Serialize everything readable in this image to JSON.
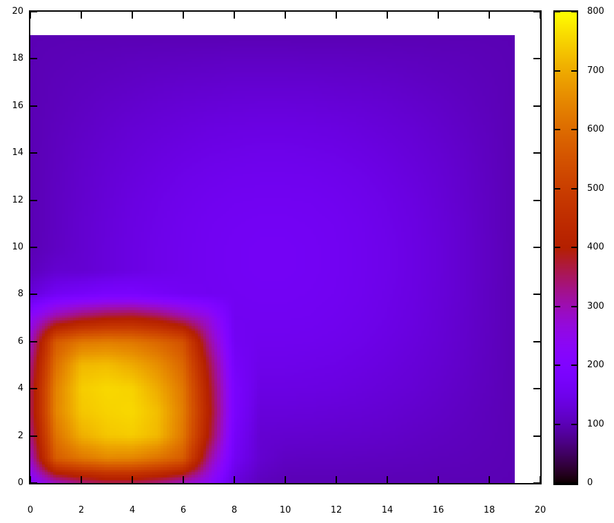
{
  "figure": {
    "title": "",
    "background_color": "#ffffff",
    "border_color": "#000000",
    "text_color": "#000000"
  },
  "chart_data": {
    "type": "heatmap",
    "title": "",
    "xlabel": "",
    "ylabel": "",
    "xlim": [
      0,
      20
    ],
    "ylim": [
      0,
      20
    ],
    "color_range": [
      0,
      800
    ],
    "x_ticks": [
      0,
      2,
      4,
      6,
      8,
      10,
      12,
      14,
      16,
      18,
      20
    ],
    "y_ticks": [
      0,
      2,
      4,
      6,
      8,
      10,
      12,
      14,
      16,
      18,
      20
    ],
    "colorbar_ticks": [
      0,
      100,
      200,
      300,
      400,
      500,
      600,
      700,
      800
    ],
    "legend_position": "right-colorbar",
    "grid": false,
    "palette": "gnuplot default rgbformulae 7,5,15 (black-purple-red-orange-yellow)",
    "data_extent": {
      "x": [
        0,
        19
      ],
      "y": [
        0,
        19
      ]
    },
    "values_row_order": "bottom-to-top (first row is y=0, values left-to-right x=0..19)",
    "x": [
      0,
      1,
      2,
      3,
      4,
      5,
      6,
      7,
      8,
      9,
      10,
      11,
      12,
      13,
      14,
      15,
      16,
      17,
      18,
      19
    ],
    "y": [
      0,
      1,
      2,
      3,
      4,
      5,
      6,
      7,
      8,
      9,
      10,
      11,
      12,
      13,
      14,
      15,
      16,
      17,
      18,
      19
    ],
    "values": [
      [
        215,
        290,
        333,
        356,
        356,
        333,
        290,
        238,
        130,
        106,
        100,
        100,
        100,
        100,
        100,
        100,
        100,
        100,
        100,
        100
      ],
      [
        290,
        570,
        615,
        645,
        640,
        610,
        565,
        322,
        162,
        121,
        111,
        110,
        110,
        109,
        108,
        107,
        105,
        104,
        102,
        100
      ],
      [
        333,
        615,
        705,
        735,
        743,
        718,
        620,
        390,
        173,
        123,
        121,
        120,
        119,
        118,
        116,
        113,
        110,
        107,
        104,
        100
      ],
      [
        356,
        645,
        735,
        750,
        757,
        725,
        630,
        410,
        184,
        131,
        131,
        130,
        128,
        126,
        123,
        119,
        115,
        110,
        105,
        100
      ],
      [
        356,
        640,
        743,
        757,
        750,
        700,
        620,
        398,
        184,
        140,
        140,
        139,
        137,
        133,
        129,
        125,
        119,
        113,
        107,
        100
      ],
      [
        333,
        610,
        718,
        725,
        700,
        660,
        590,
        372,
        173,
        148,
        148,
        146,
        144,
        140,
        135,
        129,
        123,
        116,
        108,
        100
      ],
      [
        290,
        565,
        620,
        630,
        620,
        590,
        545,
        322,
        162,
        154,
        154,
        153,
        150,
        146,
        140,
        133,
        126,
        118,
        109,
        100
      ],
      [
        238,
        322,
        365,
        390,
        398,
        372,
        322,
        264,
        158,
        159,
        159,
        158,
        155,
        150,
        144,
        137,
        128,
        119,
        110,
        100
      ],
      [
        130,
        162,
        173,
        184,
        184,
        173,
        162,
        158,
        161,
        163,
        163,
        161,
        158,
        153,
        146,
        139,
        130,
        121,
        110,
        100
      ],
      [
        106,
        121,
        123,
        131,
        140,
        148,
        154,
        159,
        163,
        165,
        165,
        163,
        159,
        154,
        148,
        140,
        131,
        121,
        111,
        100
      ],
      [
        100,
        111,
        121,
        131,
        140,
        148,
        154,
        159,
        163,
        165,
        165,
        163,
        159,
        154,
        148,
        140,
        131,
        121,
        111,
        100
      ],
      [
        100,
        110,
        121,
        130,
        139,
        146,
        153,
        158,
        161,
        163,
        163,
        161,
        158,
        153,
        146,
        139,
        130,
        121,
        110,
        100
      ],
      [
        100,
        110,
        119,
        128,
        137,
        144,
        150,
        155,
        158,
        159,
        159,
        158,
        155,
        150,
        144,
        137,
        128,
        119,
        110,
        100
      ],
      [
        100,
        109,
        118,
        126,
        133,
        140,
        146,
        150,
        153,
        154,
        154,
        153,
        150,
        146,
        140,
        133,
        126,
        118,
        109,
        100
      ],
      [
        100,
        108,
        116,
        123,
        129,
        135,
        140,
        144,
        146,
        148,
        148,
        146,
        144,
        140,
        135,
        129,
        123,
        116,
        108,
        100
      ],
      [
        100,
        107,
        113,
        119,
        125,
        129,
        133,
        137,
        139,
        140,
        140,
        139,
        137,
        133,
        129,
        125,
        119,
        113,
        107,
        100
      ],
      [
        100,
        105,
        110,
        115,
        119,
        123,
        126,
        128,
        130,
        131,
        131,
        130,
        128,
        126,
        123,
        119,
        115,
        110,
        105,
        100
      ],
      [
        100,
        104,
        107,
        110,
        113,
        116,
        118,
        119,
        121,
        121,
        121,
        121,
        119,
        118,
        116,
        113,
        110,
        107,
        104,
        100
      ],
      [
        100,
        102,
        104,
        105,
        107,
        108,
        109,
        110,
        111,
        111,
        111,
        110,
        110,
        109,
        108,
        107,
        105,
        104,
        102,
        100
      ],
      [
        100,
        100,
        100,
        100,
        100,
        100,
        100,
        100,
        100,
        100,
        100,
        100,
        100,
        100,
        100,
        100,
        100,
        100,
        100,
        100
      ]
    ]
  }
}
